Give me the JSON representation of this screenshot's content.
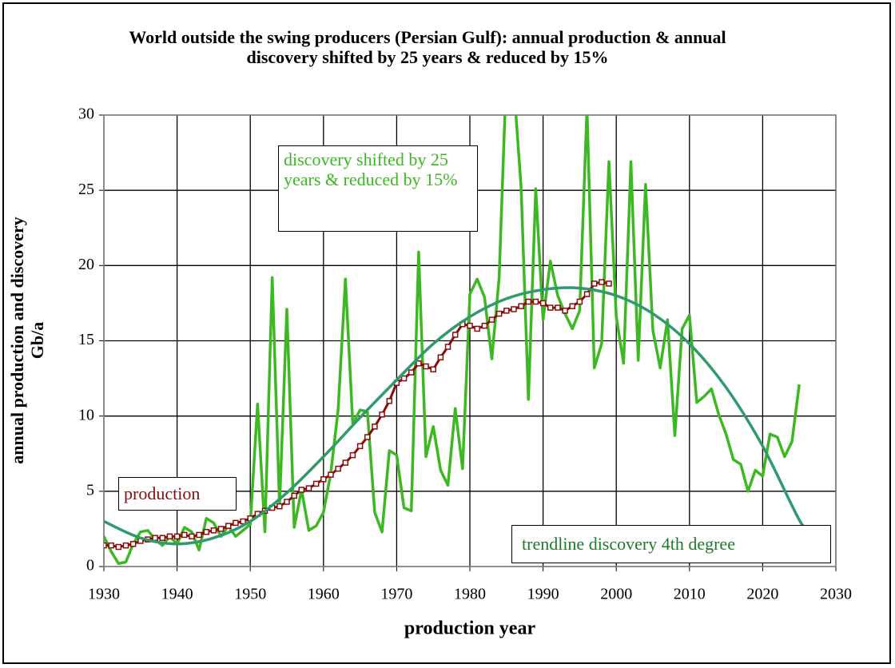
{
  "chart_data": {
    "type": "line",
    "title": "World outside the swing producers (Persian Gulf): annual production & annual discovery shifted by 25 years & reduced by 15%",
    "x_label": "production year",
    "y_label": "annual production and discovery Gb/a",
    "xlim": [
      1930,
      2030
    ],
    "xticks": [
      1930,
      1940,
      1950,
      1960,
      1970,
      1980,
      1990,
      2000,
      2010,
      2020,
      2030
    ],
    "ylim": [
      0,
      30
    ],
    "yticks": [
      0,
      5,
      10,
      15,
      20,
      25,
      30
    ],
    "grid": true,
    "annotations": [
      "discovery shifted by 25 years & reduced by 15%",
      "production",
      "trendline discovery 4th degree"
    ],
    "series": [
      {
        "color": "#3cb823",
        "x": [
          1930,
          1931,
          1932,
          1933,
          1934,
          1935,
          1936,
          1937,
          1938,
          1939,
          1940,
          1941,
          1942,
          1943,
          1944,
          1945,
          1946,
          1947,
          1948,
          1949,
          1950,
          1951,
          1952,
          1953,
          1954,
          1955,
          1956,
          1957,
          1958,
          1959,
          1960,
          1961,
          1962,
          1963,
          1964,
          1965,
          1966,
          1967,
          1968,
          1969,
          1970,
          1971,
          1972,
          1973,
          1974,
          1975,
          1976,
          1977,
          1978,
          1979,
          1980,
          1981,
          1982,
          1983,
          1984,
          1985,
          1986,
          1987,
          1988,
          1989,
          1990,
          1991,
          1992,
          1993,
          1994,
          1995,
          1996,
          1997,
          1998,
          1999,
          2000,
          2001,
          2002,
          2003,
          2004,
          2005,
          2006,
          2007,
          2008,
          2009,
          2010,
          2011,
          2012,
          2013,
          2014,
          2015,
          2016,
          2017,
          2018,
          2019,
          2020,
          2021,
          2022,
          2023,
          2024,
          2025
        ],
        "values": [
          2.0,
          1.0,
          0.2,
          0.3,
          1.5,
          2.3,
          2.4,
          1.8,
          1.4,
          2.0,
          1.5,
          2.6,
          2.3,
          1.1,
          3.2,
          2.9,
          2.0,
          2.7,
          2.0,
          2.4,
          2.8,
          10.8,
          2.3,
          19.2,
          4.0,
          17.1,
          2.6,
          5.1,
          2.4,
          2.7,
          3.6,
          6.2,
          10.4,
          19.1,
          9.5,
          10.4,
          10.3,
          3.6,
          2.3,
          7.7,
          7.4,
          3.9,
          3.7,
          20.9,
          7.3,
          9.3,
          6.4,
          5.4,
          10.5,
          6.5,
          18.1,
          19.1,
          17.9,
          13.8,
          19.2,
          33,
          32,
          25.2,
          11.1,
          25.1,
          16.4,
          20.3,
          18.0,
          16.8,
          15.8,
          17.0,
          30.5,
          13.2,
          14.8,
          26.9,
          16.6,
          13.5,
          26.9,
          13.7,
          25.4,
          15.7,
          13.2,
          16.4,
          8.7,
          15.8,
          16.7,
          10.9,
          11.3,
          11.8,
          10.1,
          8.8,
          7.1,
          6.8,
          5.0,
          6.4,
          6.0,
          8.8,
          8.6,
          7.3,
          8.3,
          12.1
        ]
      },
      {
        "color": "#8b0a0a",
        "marker": "square",
        "x": [
          1930,
          1931,
          1932,
          1933,
          1934,
          1935,
          1936,
          1937,
          1938,
          1939,
          1940,
          1941,
          1942,
          1943,
          1944,
          1945,
          1946,
          1947,
          1948,
          1949,
          1950,
          1951,
          1952,
          1953,
          1954,
          1955,
          1956,
          1957,
          1958,
          1959,
          1960,
          1961,
          1962,
          1963,
          1964,
          1965,
          1966,
          1967,
          1968,
          1969,
          1970,
          1971,
          1972,
          1973,
          1974,
          1975,
          1976,
          1977,
          1978,
          1979,
          1980,
          1981,
          1982,
          1983,
          1984,
          1985,
          1986,
          1987,
          1988,
          1989,
          1990,
          1991,
          1992,
          1993,
          1994,
          1995,
          1996,
          1997,
          1998,
          1999
        ],
        "values": [
          1.4,
          1.4,
          1.3,
          1.4,
          1.5,
          1.7,
          1.8,
          1.9,
          1.9,
          2.0,
          2.0,
          2.1,
          2.0,
          2.1,
          2.3,
          2.4,
          2.5,
          2.7,
          2.9,
          3.0,
          3.2,
          3.5,
          3.7,
          3.9,
          4.0,
          4.3,
          4.7,
          5.1,
          5.2,
          5.5,
          5.8,
          6.1,
          6.5,
          6.9,
          7.4,
          8.0,
          8.6,
          9.3,
          10.1,
          11.0,
          12.2,
          12.5,
          12.9,
          13.5,
          13.3,
          13.1,
          13.9,
          14.6,
          15.4,
          16.1,
          16.0,
          15.8,
          16.0,
          16.4,
          16.8,
          17.0,
          17.1,
          17.3,
          17.6,
          17.6,
          17.5,
          17.2,
          17.2,
          17.0,
          17.3,
          17.6,
          18.1,
          18.8,
          18.9,
          18.8
        ]
      },
      {
        "color": "#2f9a6c",
        "smooth": true,
        "x": [
          1930,
          1935,
          1940,
          1945,
          1950,
          1955,
          1960,
          1965,
          1970,
          1975,
          1980,
          1985,
          1990,
          1995,
          2000,
          2005,
          2010,
          2015,
          2020,
          2025,
          2027
        ],
        "values": [
          3.0,
          1.9,
          1.5,
          1.9,
          3.0,
          4.9,
          7.3,
          9.9,
          12.4,
          14.8,
          16.6,
          17.8,
          18.4,
          18.5,
          18.0,
          16.8,
          14.8,
          11.9,
          8.0,
          3.1,
          1.9
        ]
      }
    ]
  }
}
